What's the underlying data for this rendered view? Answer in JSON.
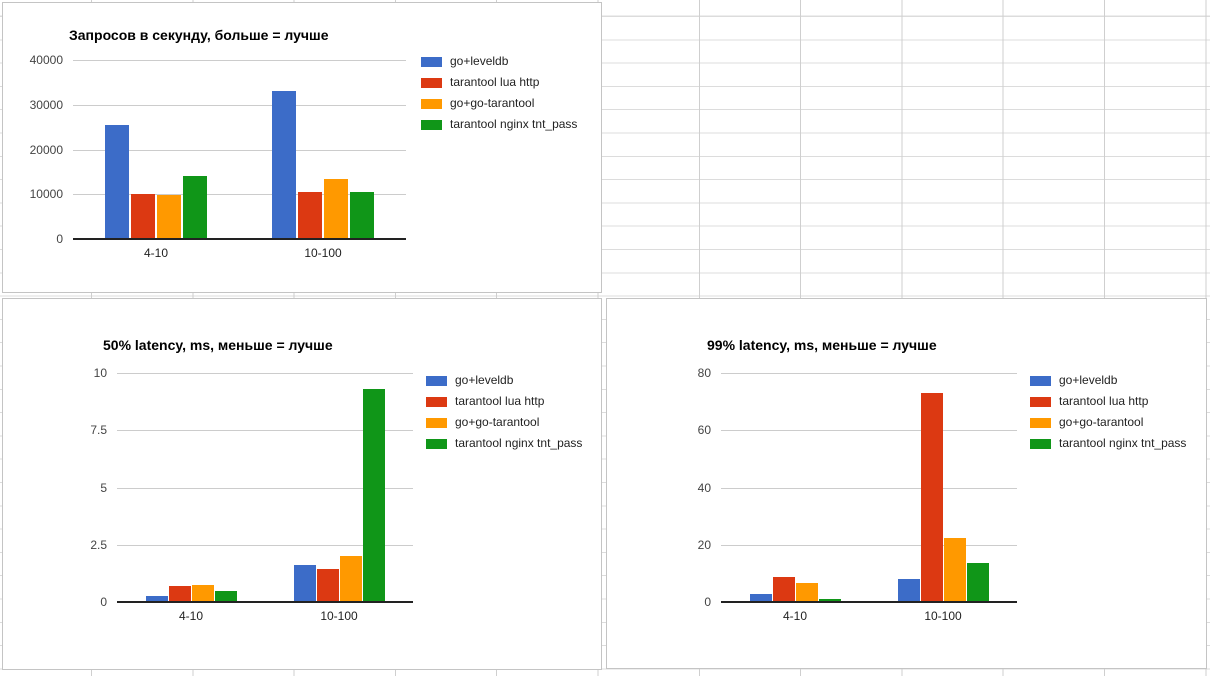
{
  "sheet": {
    "background_color": "#ffffff",
    "grid_column_line_color": "#cfcfcf",
    "grid_row_line_color": "#dcdcdc",
    "panel_border_color": "#c4c4c4"
  },
  "chart_data": [
    {
      "type": "bar",
      "title": "Запросов в секунду, больше = лучше",
      "categories": [
        "4-10",
        "10-100"
      ],
      "series": [
        {
          "name": "go+leveldb",
          "color": "#3c6cc8",
          "values": [
            25500,
            33100
          ]
        },
        {
          "name": "tarantool lua http",
          "color": "#dc3912",
          "values": [
            10100,
            10450
          ]
        },
        {
          "name": "go+go-tarantool",
          "color": "#ff9900",
          "values": [
            9900,
            13400
          ]
        },
        {
          "name": "tarantool nginx tnt_pass",
          "color": "#109618",
          "values": [
            14100,
            10450
          ]
        }
      ],
      "xlabel": "",
      "ylabel": "",
      "ylim": [
        0,
        40000
      ],
      "ytick_labels": [
        "0",
        "10000",
        "20000",
        "30000",
        "40000"
      ],
      "grid": true,
      "legend_position": "right"
    },
    {
      "type": "bar",
      "title": "50% latency, ms, меньше = лучше",
      "categories": [
        "4-10",
        "10-100"
      ],
      "series": [
        {
          "name": "go+leveldb",
          "color": "#3c6cc8",
          "values": [
            0.27,
            1.6
          ]
        },
        {
          "name": "tarantool lua http",
          "color": "#dc3912",
          "values": [
            0.7,
            1.45
          ]
        },
        {
          "name": "go+go-tarantool",
          "color": "#ff9900",
          "values": [
            0.75,
            2.0
          ]
        },
        {
          "name": "tarantool nginx tnt_pass",
          "color": "#109618",
          "values": [
            0.5,
            9.3
          ]
        }
      ],
      "xlabel": "",
      "ylabel": "",
      "ylim": [
        0,
        10
      ],
      "ytick_labels": [
        "0",
        "2.5",
        "5",
        "7.5",
        "10"
      ],
      "grid": true,
      "legend_position": "right"
    },
    {
      "type": "bar",
      "title": "99% latency, ms, меньше = лучше",
      "categories": [
        "4-10",
        "10-100"
      ],
      "series": [
        {
          "name": "go+leveldb",
          "color": "#3c6cc8",
          "values": [
            2.8,
            8.0
          ]
        },
        {
          "name": "tarantool lua http",
          "color": "#dc3912",
          "values": [
            8.7,
            73.0
          ]
        },
        {
          "name": "go+go-tarantool",
          "color": "#ff9900",
          "values": [
            6.5,
            22.5
          ]
        },
        {
          "name": "tarantool nginx tnt_pass",
          "color": "#109618",
          "values": [
            1.0,
            13.5
          ]
        }
      ],
      "xlabel": "",
      "ylabel": "",
      "ylim": [
        0,
        80
      ],
      "ytick_labels": [
        "0",
        "20",
        "40",
        "60",
        "80"
      ],
      "grid": true,
      "legend_position": "right"
    }
  ]
}
